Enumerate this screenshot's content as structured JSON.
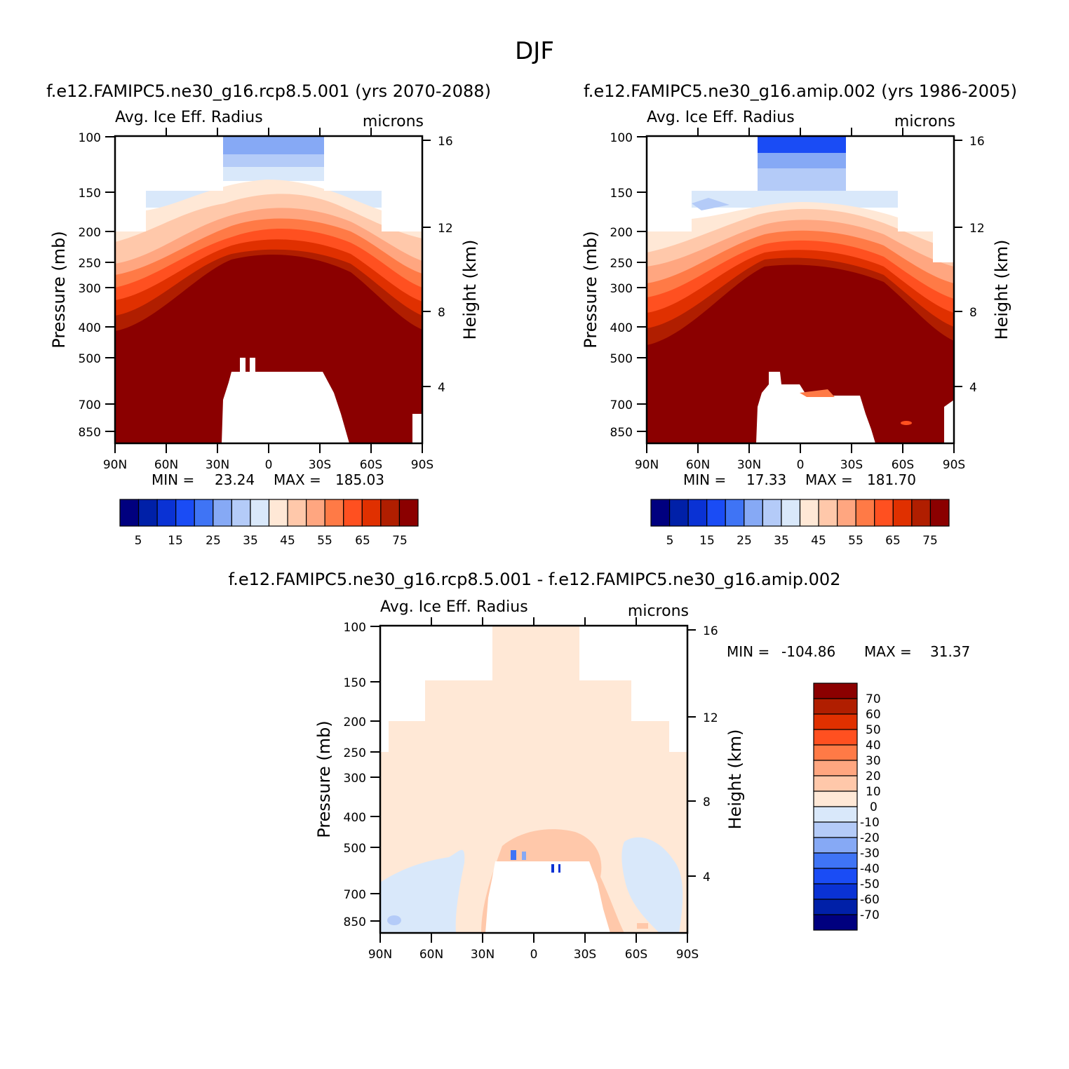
{
  "figure": {
    "season": "DJF",
    "colors": {
      "abs_scale": [
        "#00007f",
        "#0020a8",
        "#0a32d4",
        "#1a4cf5",
        "#3f74f5",
        "#86a9f5",
        "#b4cbf8",
        "#d9e8fa",
        "#ffe8d6",
        "#ffc8aa",
        "#ffa680",
        "#ff7a46",
        "#ff5020",
        "#e03000",
        "#b01e00",
        "#8b0000"
      ],
      "diff_scale": [
        "#00007f",
        "#0020a8",
        "#0a32d4",
        "#1a4cf5",
        "#3f74f5",
        "#86a9f5",
        "#b4cbf8",
        "#d9e8fa",
        "#ffe8d6",
        "#ffc8aa",
        "#ffa680",
        "#ff7a46",
        "#ff5020",
        "#e03000",
        "#b01e00",
        "#8b0000"
      ]
    }
  },
  "chart_data": [
    {
      "type": "heatmap",
      "title": "f.e12.FAMIPC5.ne30_g16.rcp8.5.001 (yrs 2070-2088)",
      "left_label": "Avg. Ice Eff. Radius",
      "right_label": "microns",
      "ylabel": "Pressure (mb)",
      "y2label": "Height (km)",
      "x_ticks": [
        "90N",
        "60N",
        "30N",
        "0",
        "30S",
        "60S",
        "90S"
      ],
      "y_ticks": [
        "100",
        "150",
        "200",
        "250",
        "300",
        "400",
        "500",
        "700",
        "850"
      ],
      "y2_ticks": [
        "16",
        "12",
        "8",
        "4"
      ],
      "min_label": "MIN =",
      "min_value": "23.24",
      "max_label": "MAX =",
      "max_value": "185.03",
      "colorbar_labels": [
        "5",
        "15",
        "25",
        "35",
        "45",
        "55",
        "65",
        "75"
      ],
      "field_summary": "ice effective radius increases downward from ~30 near 100 mb to >75 below 300 mb"
    },
    {
      "type": "heatmap",
      "title": "f.e12.FAMIPC5.ne30_g16.amip.002 (yrs 1986-2005)",
      "left_label": "Avg. Ice Eff. Radius",
      "right_label": "microns",
      "ylabel": "Pressure (mb)",
      "y2label": "Height (km)",
      "x_ticks": [
        "90N",
        "60N",
        "30N",
        "0",
        "30S",
        "60S",
        "90S"
      ],
      "y_ticks": [
        "100",
        "150",
        "200",
        "250",
        "300",
        "400",
        "500",
        "700",
        "850"
      ],
      "y2_ticks": [
        "16",
        "12",
        "8",
        "4"
      ],
      "min_label": "MIN =",
      "min_value": "17.33",
      "max_label": "MAX =",
      "max_value": "181.70",
      "colorbar_labels": [
        "5",
        "15",
        "25",
        "35",
        "45",
        "55",
        "65",
        "75"
      ],
      "field_summary": "ice effective radius increases downward from ~20 near 100 mb to >75 below 300 mb"
    },
    {
      "type": "heatmap",
      "title": "f.e12.FAMIPC5.ne30_g16.rcp8.5.001 - f.e12.FAMIPC5.ne30_g16.amip.002",
      "left_label": "Avg. Ice Eff. Radius",
      "right_label": "microns",
      "ylabel": "Pressure (mb)",
      "y2label": "Height (km)",
      "x_ticks": [
        "90N",
        "60N",
        "30N",
        "0",
        "30S",
        "60S",
        "90S"
      ],
      "y_ticks": [
        "100",
        "150",
        "200",
        "250",
        "300",
        "400",
        "500",
        "700",
        "850"
      ],
      "y2_ticks": [
        "16",
        "12",
        "8",
        "4"
      ],
      "min_label": "MIN =",
      "min_value": "-104.86",
      "max_label": "MAX =",
      "max_value": "31.37",
      "colorbar_labels": [
        "70",
        "60",
        "50",
        "40",
        "30",
        "20",
        "10",
        "0",
        "-10",
        "-20",
        "-30",
        "-40",
        "-50",
        "-60",
        "-70"
      ],
      "field_summary": "difference mostly 0 to 10 everywhere, 10-20 near 500 mb tropics, -10 to 0 in lower high latitudes"
    }
  ]
}
